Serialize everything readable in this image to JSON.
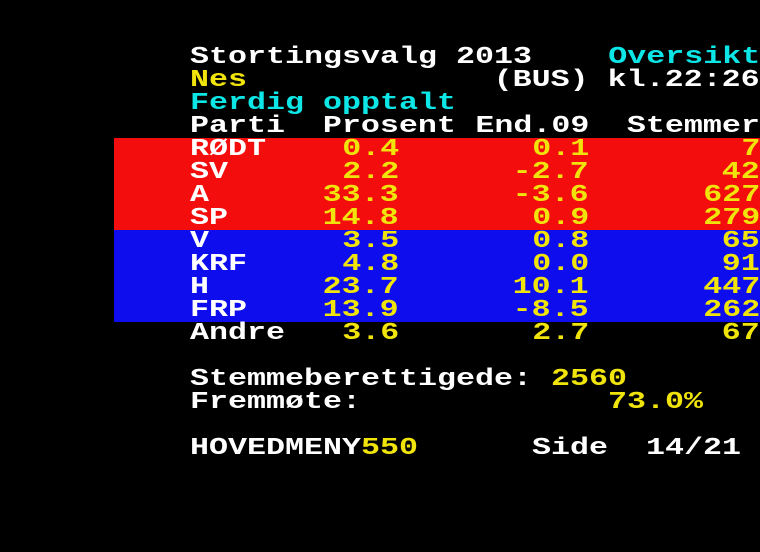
{
  "palette": {
    "background": "#000000",
    "red": "#f30d0d",
    "blue": "#0d0dee",
    "yellow": "#f1e40b",
    "cyan": "#0ce6e6",
    "white": "#ffffff"
  },
  "header": {
    "title": "Stortingsvalg 2013",
    "view": "Oversikt",
    "municipality": "Nes",
    "code_clock": "(BUS) kl.22:26",
    "status": "Ferdig opptalt"
  },
  "table": {
    "columns": {
      "party": "Parti",
      "percent": "Prosent",
      "change": "End.09",
      "votes": "Stemmer"
    },
    "rows": [
      {
        "party": "RØDT",
        "percent": "0.4",
        "change": "0.1",
        "votes": "7",
        "block": "red"
      },
      {
        "party": "SV",
        "percent": "2.2",
        "change": "-2.7",
        "votes": "42",
        "block": "red"
      },
      {
        "party": "A",
        "percent": "33.3",
        "change": "-3.6",
        "votes": "627",
        "block": "red"
      },
      {
        "party": "SP",
        "percent": "14.8",
        "change": "0.9",
        "votes": "279",
        "block": "red"
      },
      {
        "party": "V",
        "percent": "3.5",
        "change": "0.8",
        "votes": "65",
        "block": "blue"
      },
      {
        "party": "KRF",
        "percent": "4.8",
        "change": "0.0",
        "votes": "91",
        "block": "blue"
      },
      {
        "party": "H",
        "percent": "23.7",
        "change": "10.1",
        "votes": "447",
        "block": "blue"
      },
      {
        "party": "FRP",
        "percent": "13.9",
        "change": "-8.5",
        "votes": "262",
        "block": "blue"
      },
      {
        "party": "Andre",
        "percent": "3.6",
        "change": "2.7",
        "votes": "67",
        "block": "none"
      }
    ]
  },
  "summary": {
    "eligible_label": "Stemmeberettigede:",
    "eligible_value": "2560",
    "turnout_label": "Fremmøte:",
    "turnout_value": "73.0%"
  },
  "footer": {
    "menu_label": "HOVEDMENY",
    "menu_page": "550",
    "page_label": "Side",
    "page_number": "14/21"
  }
}
